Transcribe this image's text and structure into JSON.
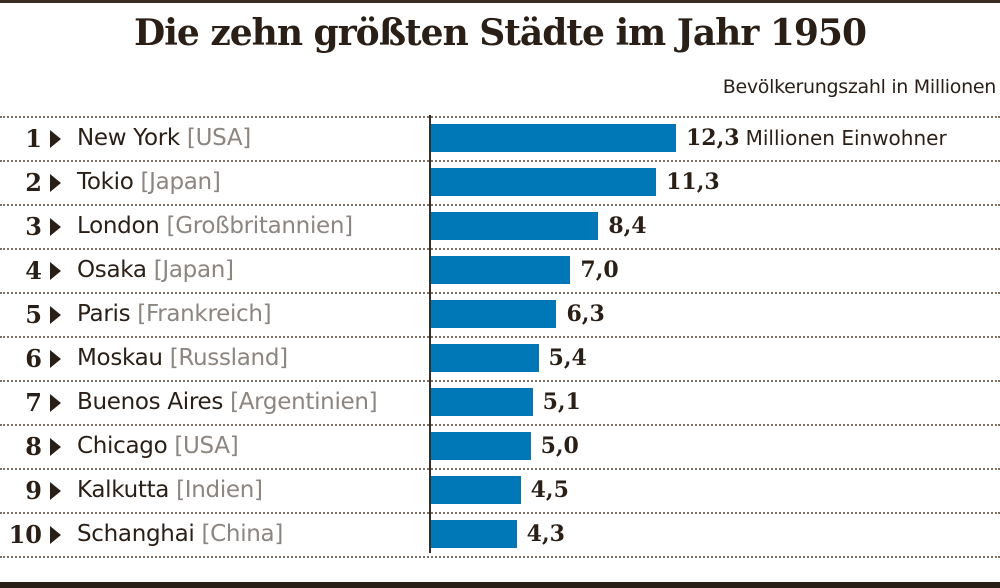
{
  "header": {
    "title": "Die zehn größten Städte im Jahr 1950",
    "subtitle": "Bevölkerungszahl in Millionen"
  },
  "unit_label": "Millionen Einwohner",
  "colors": {
    "bar": "#0077b6",
    "text": "#2a1f17",
    "country": "#8c8580"
  },
  "chart_data": {
    "type": "bar",
    "orientation": "horizontal",
    "title": "Die zehn größten Städte im Jahr 1950",
    "subtitle": "Bevölkerungszahl in Millionen",
    "xlabel": "Bevölkerungszahl in Millionen",
    "ylabel": "",
    "xlim": [
      0,
      12.3
    ],
    "grid": false,
    "rows": [
      {
        "rank": "1",
        "city": "New York",
        "country": "[USA]",
        "value": 12.3,
        "label": "12,3"
      },
      {
        "rank": "2",
        "city": "Tokio",
        "country": "[Japan]",
        "value": 11.3,
        "label": "11,3"
      },
      {
        "rank": "3",
        "city": "London",
        "country": "[Großbritannien]",
        "value": 8.4,
        "label": "8,4"
      },
      {
        "rank": "4",
        "city": "Osaka",
        "country": "[Japan]",
        "value": 7.0,
        "label": "7,0"
      },
      {
        "rank": "5",
        "city": "Paris",
        "country": "[Frankreich]",
        "value": 6.3,
        "label": "6,3"
      },
      {
        "rank": "6",
        "city": "Moskau",
        "country": "[Russland]",
        "value": 5.4,
        "label": "5,4"
      },
      {
        "rank": "7",
        "city": "Buenos Aires",
        "country": "[Argentinien]",
        "value": 5.1,
        "label": "5,1"
      },
      {
        "rank": "8",
        "city": "Chicago",
        "country": "[USA]",
        "value": 5.0,
        "label": "5,0"
      },
      {
        "rank": "9",
        "city": "Kalkutta",
        "country": "[Indien]",
        "value": 4.5,
        "label": "4,5"
      },
      {
        "rank": "10",
        "city": "Schanghai",
        "country": "[China]",
        "value": 4.3,
        "label": "4,3"
      }
    ]
  }
}
